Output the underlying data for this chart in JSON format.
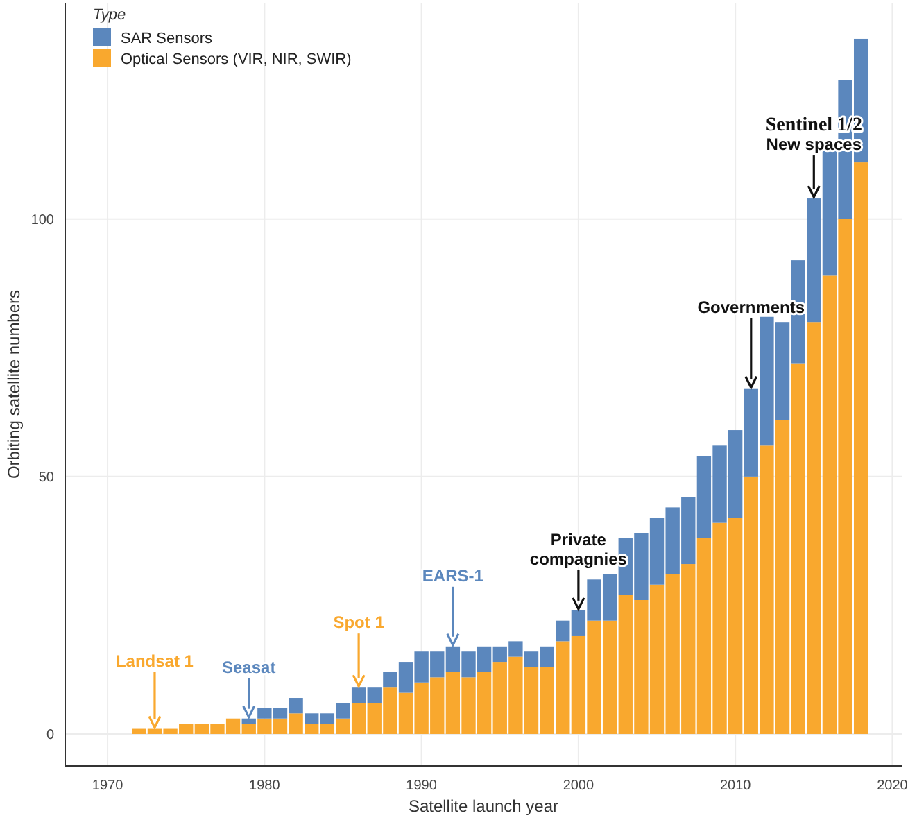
{
  "chart_data": {
    "type": "bar",
    "stacked": true,
    "xlabel": "Satellite launch year",
    "ylabel": "Orbiting satellite numbers",
    "legend_title": "Type",
    "legend": "top left",
    "grid": true,
    "x": [
      1972,
      1973,
      1974,
      1975,
      1976,
      1977,
      1978,
      1979,
      1980,
      1981,
      1982,
      1983,
      1984,
      1985,
      1986,
      1987,
      1988,
      1989,
      1990,
      1991,
      1992,
      1993,
      1994,
      1995,
      1996,
      1997,
      1998,
      1999,
      2000,
      2001,
      2002,
      2003,
      2004,
      2005,
      2006,
      2007,
      2008,
      2009,
      2010,
      2011,
      2012,
      2013,
      2014,
      2015,
      2016,
      2017,
      2018
    ],
    "series": [
      {
        "name": "Optical Sensors (VIR, NIR, SWIR)",
        "color": "#f9a82e",
        "values": [
          1,
          1,
          1,
          2,
          2,
          2,
          3,
          2,
          3,
          3,
          4,
          2,
          2,
          3,
          6,
          6,
          9,
          8,
          10,
          11,
          12,
          11,
          12,
          14,
          15,
          13,
          13,
          18,
          19,
          22,
          22,
          27,
          26,
          29,
          31,
          33,
          38,
          41,
          42,
          50,
          56,
          61,
          72,
          80,
          89,
          100,
          111
        ]
      },
      {
        "name": "SAR Sensors",
        "color": "#5b87bd",
        "values": [
          0,
          0,
          0,
          0,
          0,
          0,
          0,
          1,
          2,
          2,
          3,
          2,
          2,
          3,
          3,
          3,
          3,
          6,
          6,
          5,
          5,
          5,
          5,
          3,
          3,
          3,
          4,
          4,
          5,
          8,
          9,
          11,
          13,
          13,
          13,
          13,
          16,
          15,
          17,
          17,
          25,
          19,
          20,
          24,
          25,
          27,
          24
        ]
      }
    ],
    "xlim": [
      1967.3,
      2020.6
    ],
    "xticks": [
      1970,
      1980,
      1990,
      2000,
      2010,
      2020
    ],
    "ylim": [
      -6.2,
      142
    ],
    "yticks": [
      0,
      50,
      100
    ],
    "annotations": [
      {
        "text": "Landsat 1",
        "x": 1973,
        "y": 1
      },
      {
        "text": "Seasat",
        "x": 1979,
        "y": 3
      },
      {
        "text": "Spot 1",
        "x": 1986,
        "y": 9
      },
      {
        "text": "EARS-1",
        "x": 1992,
        "y": 17
      },
      {
        "text": "Private\ncompagnies",
        "x": 2000,
        "y": 24
      },
      {
        "text": "Governments",
        "x": 2011,
        "y": 67
      },
      {
        "text": "Sentinel 1/2\nNew spaces",
        "x": 2015,
        "y": 104
      }
    ]
  }
}
